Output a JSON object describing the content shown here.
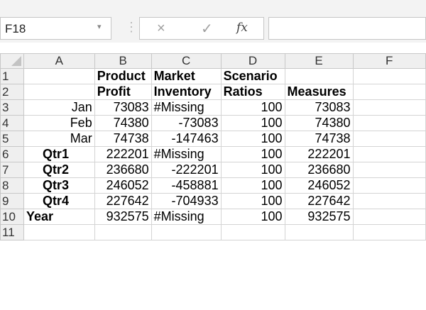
{
  "name_box": {
    "value": "F18"
  },
  "formula_bar": {
    "cancel_symbol": "×",
    "enter_symbol": "✓",
    "fx_label": "fx",
    "content": ""
  },
  "columns": [
    "A",
    "B",
    "C",
    "D",
    "E",
    "F"
  ],
  "rows": [
    {
      "num": "1",
      "cells": [
        "",
        "Product",
        "Market",
        "Scenario",
        "",
        ""
      ]
    },
    {
      "num": "2",
      "cells": [
        "",
        "Profit",
        "Inventory",
        "Ratios",
        "Measures",
        ""
      ]
    },
    {
      "num": "3",
      "cells": [
        "Jan",
        "73083",
        "#Missing",
        "100",
        "73083",
        ""
      ]
    },
    {
      "num": "4",
      "cells": [
        "Feb",
        "74380",
        "-73083",
        "100",
        "74380",
        ""
      ]
    },
    {
      "num": "5",
      "cells": [
        "Mar",
        "74738",
        "-147463",
        "100",
        "74738",
        ""
      ]
    },
    {
      "num": "6",
      "cells": [
        "Qtr1",
        "222201",
        "#Missing",
        "100",
        "222201",
        ""
      ]
    },
    {
      "num": "7",
      "cells": [
        "Qtr2",
        "236680",
        "-222201",
        "100",
        "236680",
        ""
      ]
    },
    {
      "num": "8",
      "cells": [
        "Qtr3",
        "246052",
        "-458881",
        "100",
        "246052",
        ""
      ]
    },
    {
      "num": "9",
      "cells": [
        "Qtr4",
        "227642",
        "-704933",
        "100",
        "227642",
        ""
      ]
    },
    {
      "num": "10",
      "cells": [
        "Year",
        "932575",
        "#Missing",
        "100",
        "932575",
        ""
      ]
    },
    {
      "num": "11",
      "cells": [
        "",
        "",
        "",
        "",
        "",
        ""
      ]
    }
  ]
}
